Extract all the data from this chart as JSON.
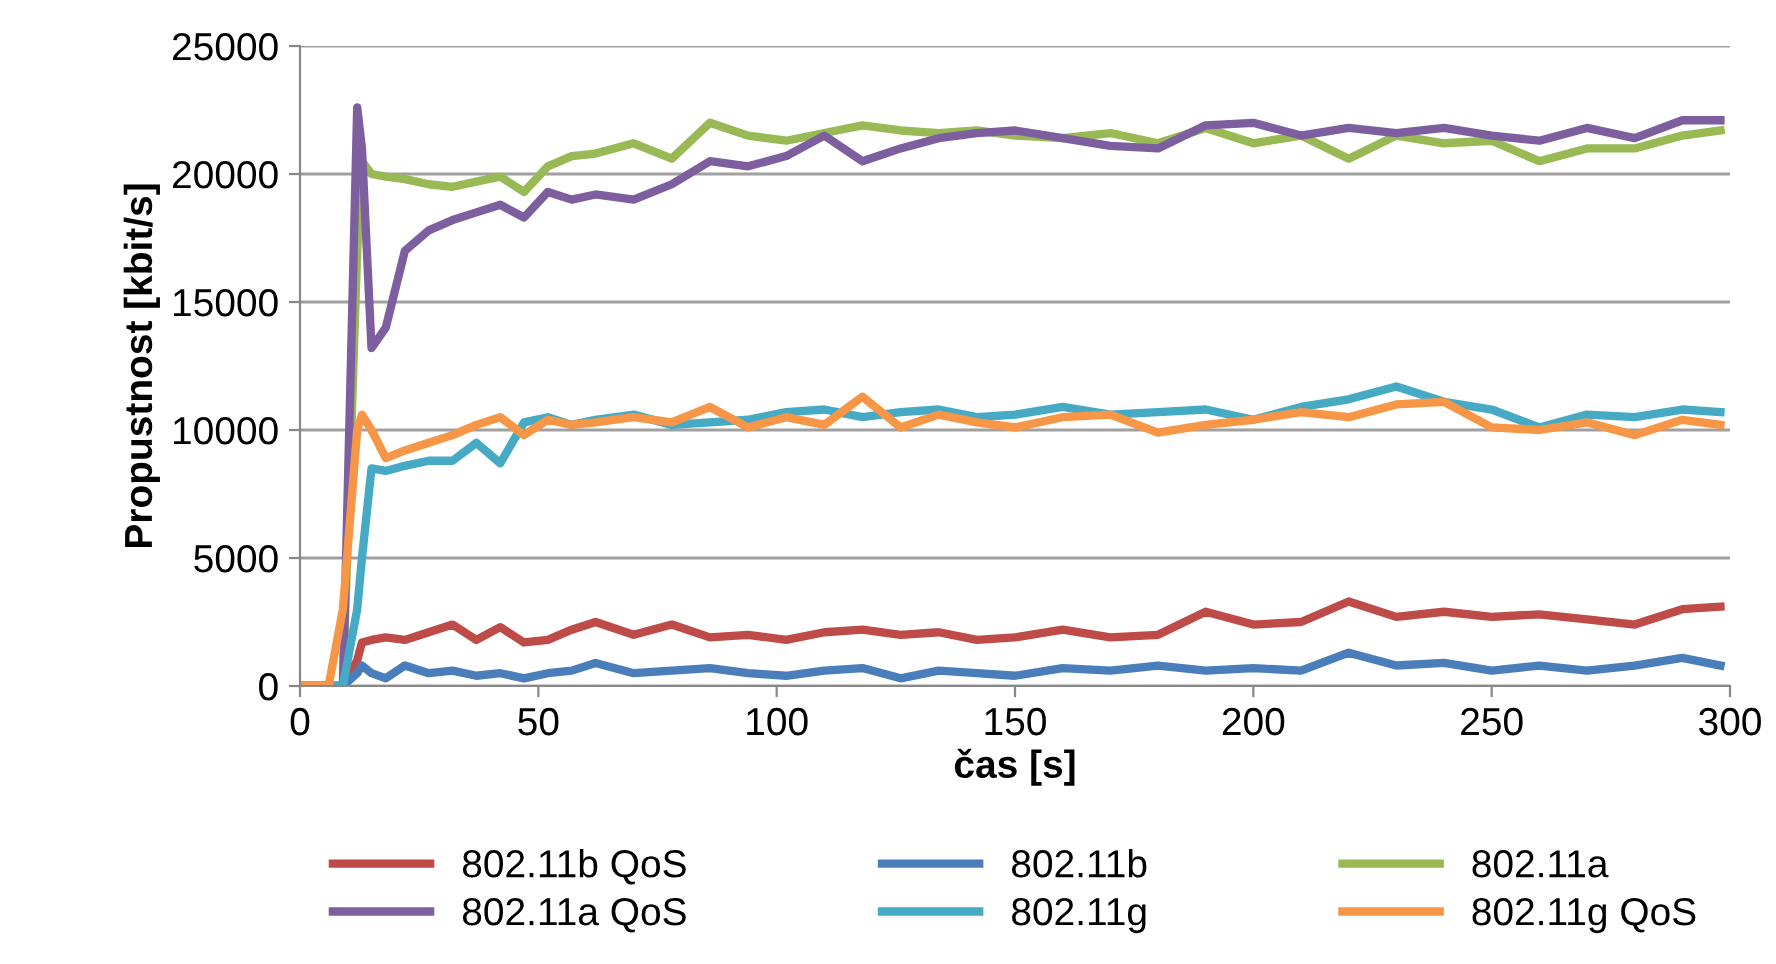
{
  "chart_data": {
    "type": "line",
    "xlabel": "čas [s]",
    "ylabel": "Propustnost [kbit/s]",
    "x": [
      0,
      6,
      9,
      12,
      13,
      15,
      18,
      22,
      27,
      32,
      37,
      42,
      47,
      52,
      57,
      62,
      70,
      78,
      86,
      94,
      102,
      110,
      118,
      126,
      134,
      142,
      150,
      160,
      170,
      180,
      190,
      200,
      210,
      220,
      230,
      240,
      250,
      260,
      270,
      280,
      290,
      298
    ],
    "xlim": [
      0,
      300
    ],
    "xticks": [
      0,
      50,
      100,
      150,
      200,
      250,
      300
    ],
    "ylim": [
      0,
      25000
    ],
    "yticks": [
      0,
      5000,
      10000,
      15000,
      20000,
      25000
    ],
    "grid": "y",
    "legend": "bottom",
    "marker": "none",
    "line_style": "solid",
    "series": [
      {
        "name": "802.11b QoS",
        "color": "#be4b48",
        "values": [
          0,
          0,
          0,
          1000,
          1700,
          1800,
          1900,
          1800,
          2100,
          2400,
          1800,
          2300,
          1700,
          1800,
          2200,
          2500,
          2000,
          2400,
          1900,
          2000,
          1800,
          2100,
          2200,
          2000,
          2100,
          1800,
          1900,
          2200,
          1900,
          2000,
          2900,
          2400,
          2500,
          3300,
          2700,
          2900,
          2700,
          2800,
          2600,
          2400,
          3000,
          3100
        ]
      },
      {
        "name": "802.11b",
        "color": "#4a7ebb",
        "values": [
          0,
          0,
          0,
          500,
          800,
          500,
          300,
          800,
          500,
          600,
          400,
          500,
          300,
          500,
          600,
          900,
          500,
          600,
          700,
          500,
          400,
          600,
          700,
          300,
          600,
          500,
          400,
          700,
          600,
          800,
          600,
          700,
          600,
          1300,
          800,
          900,
          600,
          800,
          600,
          800,
          1100,
          800
        ]
      },
      {
        "name": "802.11a",
        "color": "#98b954",
        "values": [
          0,
          0,
          0,
          17000,
          20500,
          20000,
          19900,
          19800,
          19600,
          19500,
          19700,
          19900,
          19300,
          20300,
          20700,
          20800,
          21200,
          20600,
          22000,
          21500,
          21300,
          21600,
          21900,
          21700,
          21600,
          21700,
          21500,
          21400,
          21600,
          21200,
          21800,
          21200,
          21500,
          20600,
          21500,
          21200,
          21300,
          20500,
          21000,
          21000,
          21500,
          21700
        ]
      },
      {
        "name": "802.11a QoS",
        "color": "#7d5fa0",
        "values": [
          0,
          0,
          0,
          22600,
          21000,
          13200,
          14000,
          17000,
          17800,
          18200,
          18500,
          18800,
          18300,
          19300,
          19000,
          19200,
          19000,
          19600,
          20500,
          20300,
          20700,
          21500,
          20500,
          21000,
          21400,
          21600,
          21700,
          21400,
          21100,
          21000,
          21900,
          22000,
          21500,
          21800,
          21600,
          21800,
          21500,
          21300,
          21800,
          21400,
          22100,
          22100
        ]
      },
      {
        "name": "802.11g",
        "color": "#46aac5",
        "values": [
          0,
          0,
          0,
          3000,
          5000,
          8500,
          8400,
          8600,
          8800,
          8800,
          9500,
          8700,
          10300,
          10500,
          10200,
          10400,
          10600,
          10200,
          10300,
          10400,
          10700,
          10800,
          10500,
          10700,
          10800,
          10500,
          10600,
          10900,
          10600,
          10700,
          10800,
          10400,
          10900,
          11200,
          11700,
          11100,
          10800,
          10100,
          10600,
          10500,
          10800,
          10700
        ]
      },
      {
        "name": "802.11g QoS",
        "color": "#f79646",
        "values": [
          0,
          0,
          3000,
          10000,
          10600,
          10000,
          8900,
          9200,
          9500,
          9800,
          10200,
          10500,
          9800,
          10400,
          10200,
          10300,
          10500,
          10300,
          10900,
          10100,
          10500,
          10200,
          11300,
          10100,
          10600,
          10300,
          10100,
          10500,
          10600,
          9900,
          10200,
          10400,
          10700,
          10500,
          11000,
          11100,
          10100,
          10000,
          10300,
          9800,
          10400,
          10200
        ]
      }
    ]
  }
}
